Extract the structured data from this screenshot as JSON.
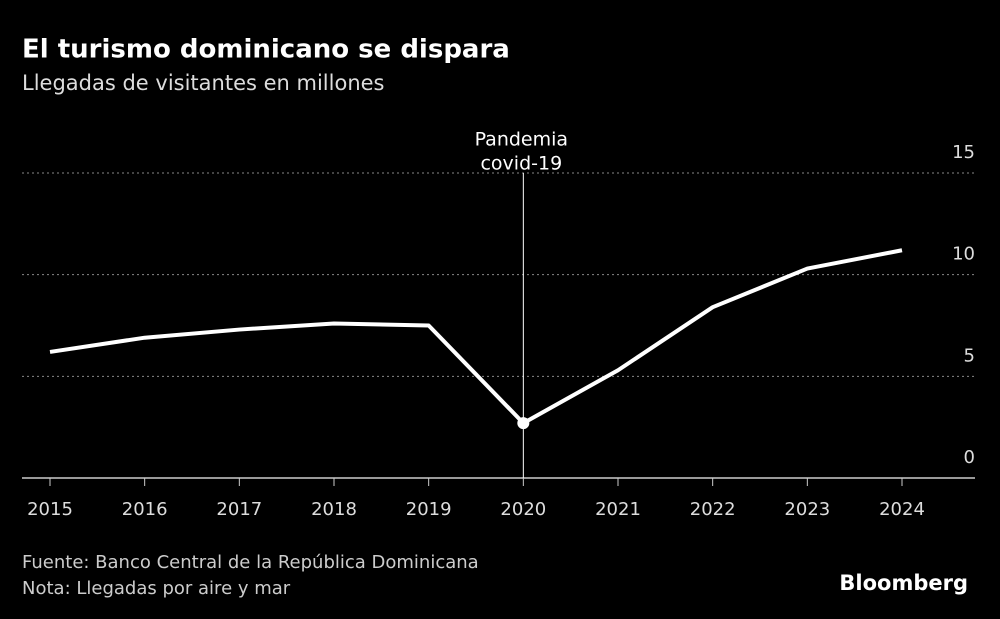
{
  "chart_data": {
    "type": "line",
    "title": "El turismo dominicano se dispara",
    "subtitle": "Llegadas de visitantes en millones",
    "categories": [
      "2015",
      "2016",
      "2017",
      "2018",
      "2019",
      "2020",
      "2021",
      "2022",
      "2023",
      "2024"
    ],
    "series": [
      {
        "name": "Llegadas de visitantes",
        "color": "#ffffff",
        "values": [
          6.2,
          6.9,
          7.3,
          7.6,
          7.5,
          2.7,
          5.3,
          8.4,
          10.3,
          11.2
        ]
      }
    ],
    "ylim": [
      0,
      15
    ],
    "yticks": [
      0,
      5,
      10,
      15
    ],
    "grid": true,
    "annotation": {
      "x": "2020",
      "text": [
        "Pandemia",
        "covid-19"
      ]
    },
    "source": "Fuente: Banco Central de la República Dominicana",
    "note": "Nota: Llegadas por aire y mar",
    "brand": "Bloomberg"
  }
}
